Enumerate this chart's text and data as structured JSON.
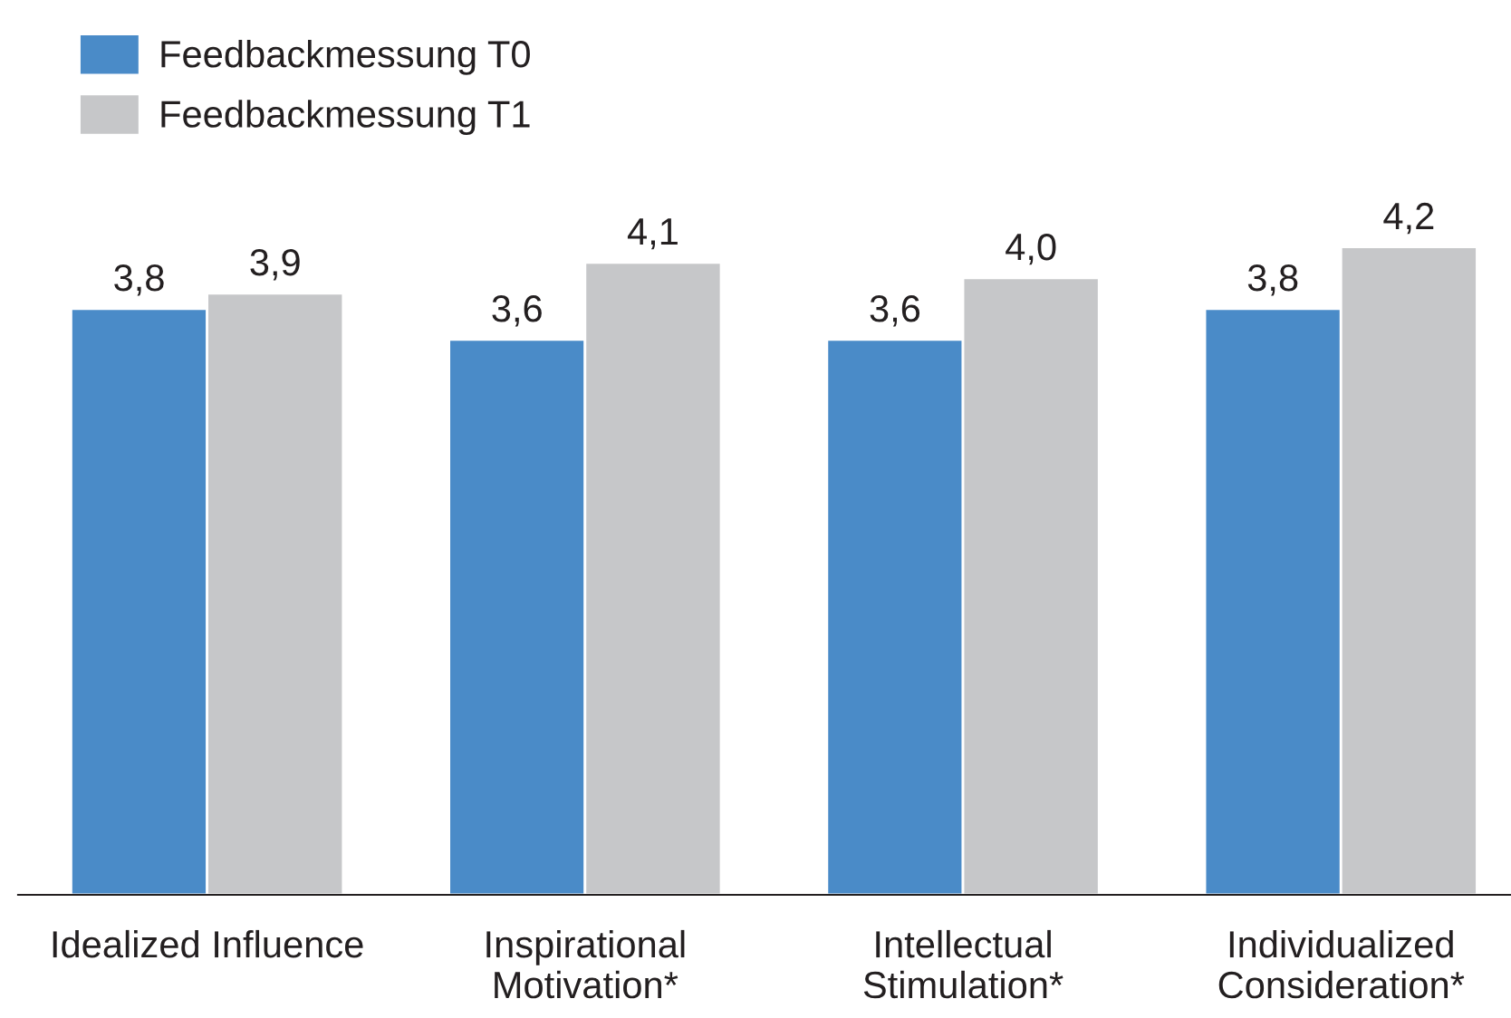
{
  "chart_data": {
    "type": "bar",
    "categories": [
      "Idealized Influence",
      "Inspirational\nMotivation*",
      "Intellectual\nStimulation*",
      "Individualized\nConsideration*"
    ],
    "series": [
      {
        "name": "Feedbackmessung T0",
        "color": "#4a8bc8",
        "values": [
          3.8,
          3.6,
          3.6,
          3.8
        ],
        "value_labels": [
          "3,8",
          "3,6",
          "3,6",
          "3,8"
        ]
      },
      {
        "name": "Feedbackmessung T1",
        "color": "#c6c7c9",
        "values": [
          3.9,
          4.1,
          4.0,
          4.2
        ],
        "value_labels": [
          "3,9",
          "4,1",
          "4,0",
          "4,2"
        ]
      }
    ],
    "legend": "top left",
    "grid": false
  }
}
